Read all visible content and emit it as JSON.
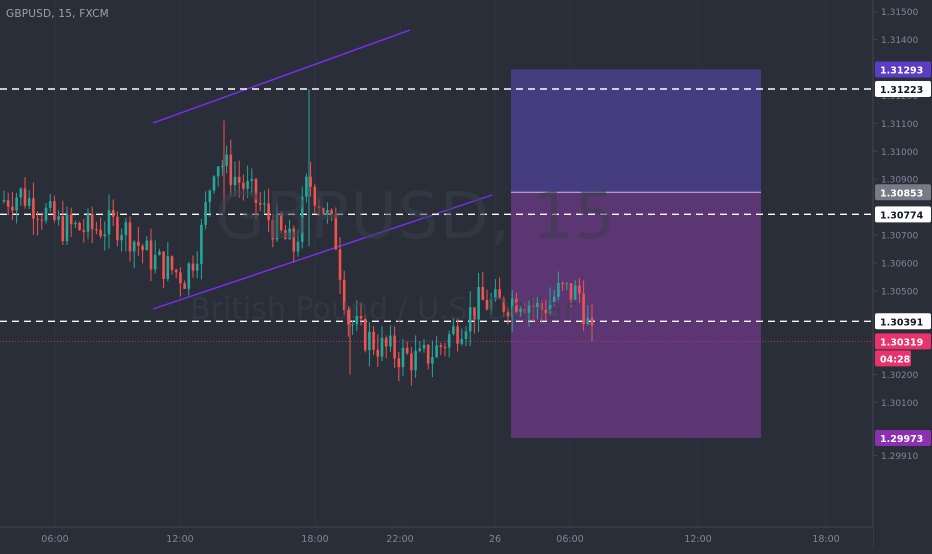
{
  "symbol": {
    "title": "GBPUSD, 15, FXCM"
  },
  "watermark": {
    "title": "GBPUSD, 15",
    "subtitle": "British Pound / U.S. Dollar"
  },
  "colors": {
    "background": "#2a2e39",
    "up_candle": "#26a69a",
    "down_candle": "#ef5350",
    "trend_line": "#7b2ff7",
    "target_zone": "#4a3f8a",
    "stop_zone": "#6e3a86",
    "current_price": "#e8336d",
    "entry_line": "#b2b5be",
    "dashed_level": "#ffffff",
    "axis_text": "#7f8596",
    "axis_bg": "#2a2e39"
  },
  "price_axis": {
    "ticks": [
      "1.31500",
      "1.31400",
      "1.31200",
      "1.31100",
      "1.31000",
      "1.30900",
      "1.30700",
      "1.30600",
      "1.30500",
      "1.30200",
      "1.30100",
      "1.29910"
    ],
    "badges": [
      {
        "id": "target",
        "label": "1.31293",
        "color": "#5b3cc4"
      },
      {
        "id": "level1",
        "label": "1.31223",
        "color": "#ffffff"
      },
      {
        "id": "entry",
        "label": "1.30853",
        "color": "#787b86"
      },
      {
        "id": "level2",
        "label": "1.30774",
        "color": "#ffffff"
      },
      {
        "id": "level3",
        "label": "1.30391",
        "color": "#ffffff"
      },
      {
        "id": "current",
        "label": "1.30319",
        "color": "#e8336d"
      },
      {
        "id": "countdown",
        "label": "04:28",
        "color": "#e8336d"
      },
      {
        "id": "stop",
        "label": "1.29973",
        "color": "#8c2fb0"
      }
    ]
  },
  "time_axis": {
    "labels": [
      "06:00",
      "12:00",
      "18:00",
      "22:00",
      "26",
      "06:00",
      "12:00",
      "18:00"
    ]
  },
  "levels": [
    1.31223,
    1.30774,
    1.30391
  ],
  "position": {
    "target": 1.31293,
    "entry": 1.30853,
    "stop": 1.29973,
    "current": 1.30319
  }
}
